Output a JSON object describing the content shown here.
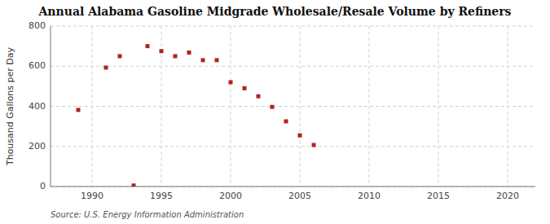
{
  "chart_data": {
    "type": "scatter",
    "title": "Annual Alabama Gasoline Midgrade Wholesale/Resale Volume by Refiners",
    "ylabel": "Thousand Gallons per Day",
    "source": "Source: U.S. Energy Information Administration",
    "x": [
      1989,
      1991,
      1992,
      1993,
      1994,
      1995,
      1996,
      1997,
      1998,
      1999,
      2000,
      2001,
      2002,
      2003,
      2004,
      2005,
      2006
    ],
    "values": [
      382,
      593,
      650,
      5,
      700,
      675,
      650,
      668,
      630,
      630,
      520,
      490,
      450,
      397,
      325,
      255,
      207
    ],
    "color": "#b22222",
    "marker": "square",
    "grid": true,
    "xlim": [
      1987,
      2022
    ],
    "ylim": [
      0,
      800
    ],
    "xticks": [
      1990,
      1995,
      2000,
      2005,
      2010,
      2015,
      2020
    ],
    "yticks": [
      0,
      200,
      400,
      600,
      800
    ]
  }
}
